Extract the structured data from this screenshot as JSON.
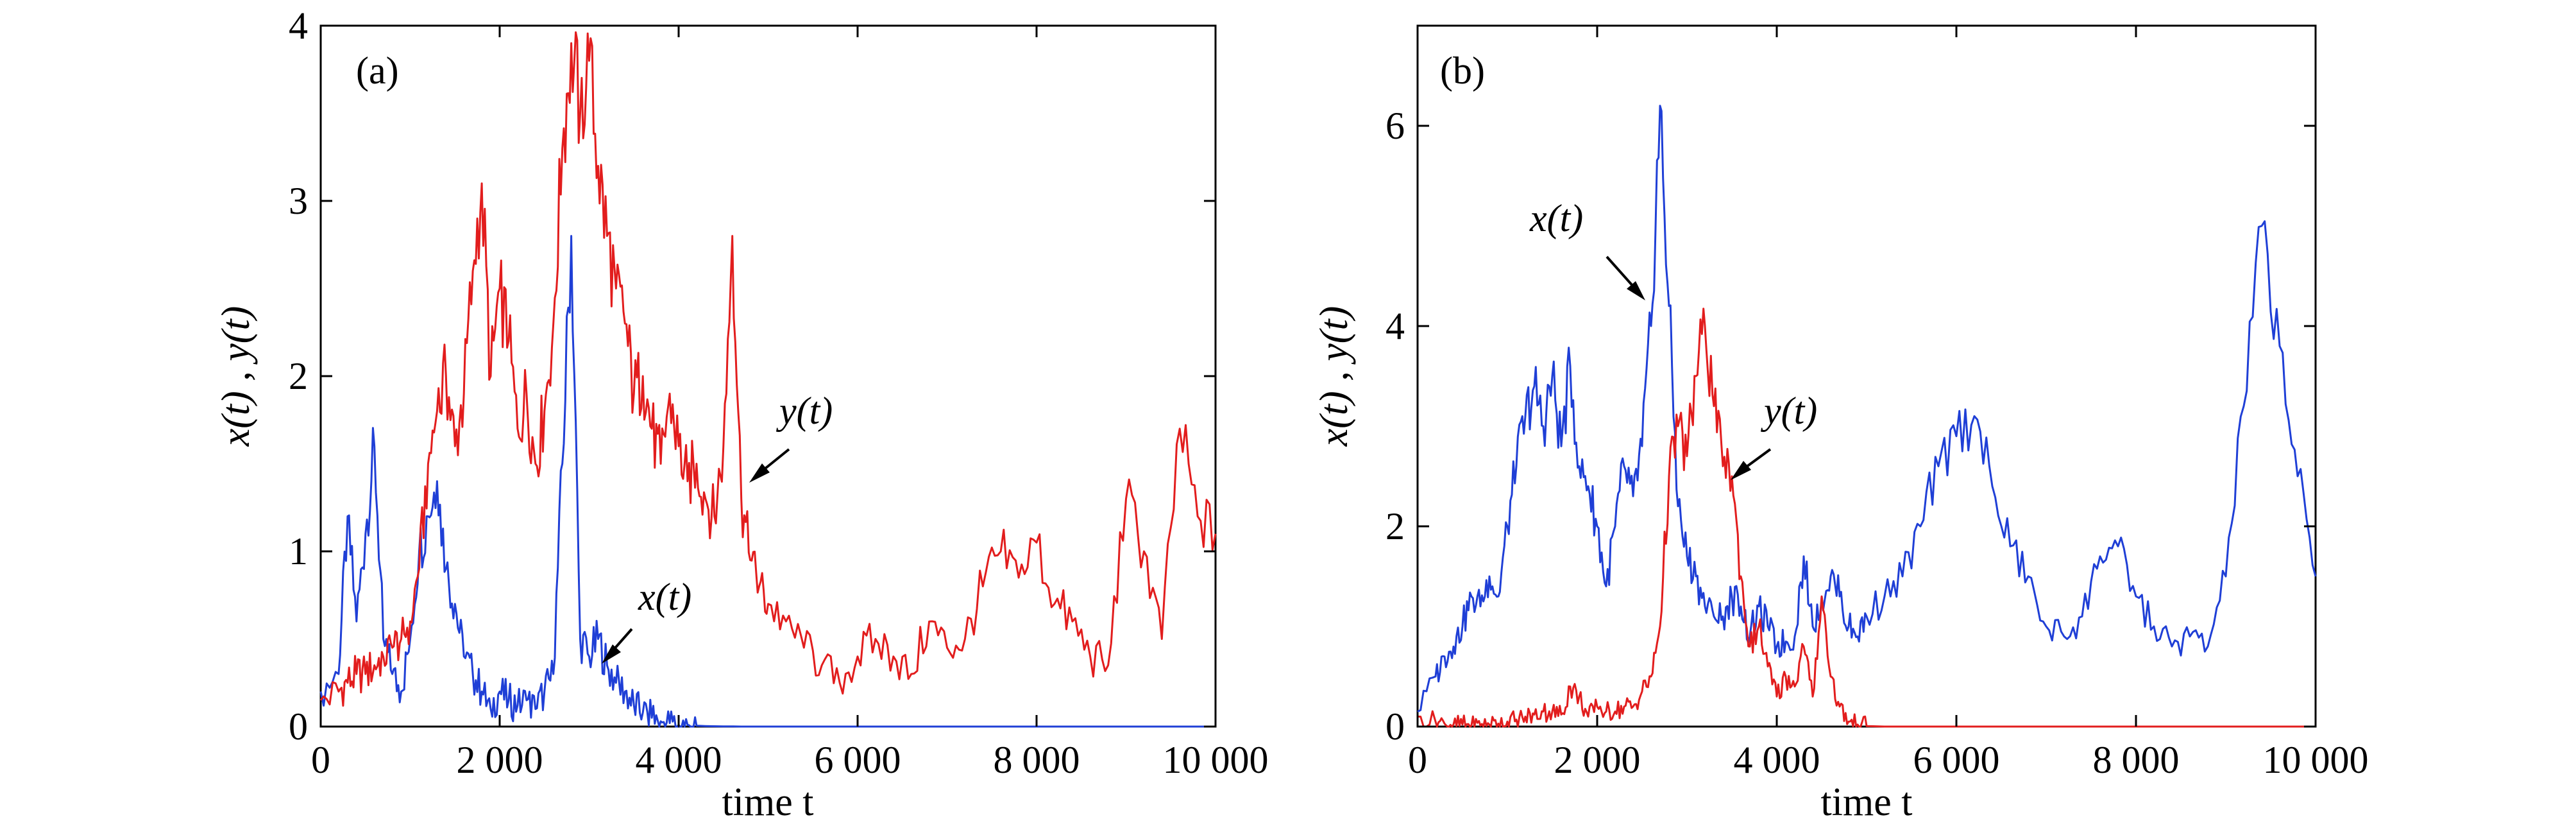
{
  "colors": {
    "x_series": "#1f3fd6",
    "y_series": "#e21d1d",
    "axis": "#000000",
    "background": "#ffffff"
  },
  "chart_data": [
    {
      "type": "line",
      "panel_label": "(a)",
      "xlabel": "time t",
      "ylabel": "x(t) , y(t)",
      "xlim": [
        0,
        10000
      ],
      "ylim": [
        0,
        4
      ],
      "x_ticks": [
        0,
        2000,
        4000,
        6000,
        8000,
        10000
      ],
      "x_tick_labels": [
        "0",
        "2 000",
        "4 000",
        "6 000",
        "8 000",
        "10 000"
      ],
      "y_ticks": [
        0,
        1,
        2,
        3,
        4
      ],
      "y_tick_labels": [
        "0",
        "1",
        "2",
        "3",
        "4"
      ],
      "grid": false,
      "x": [
        0,
        200,
        300,
        400,
        500,
        600,
        700,
        800,
        900,
        1000,
        1100,
        1200,
        1300,
        1400,
        1500,
        1600,
        1700,
        1800,
        1900,
        2000,
        2100,
        2200,
        2300,
        2400,
        2500,
        2600,
        2700,
        2800,
        2900,
        3000,
        3100,
        3200,
        3300,
        3400,
        3500,
        3600,
        3700,
        3800,
        3900,
        4000,
        4100,
        4200,
        4300,
        4400,
        4500,
        4600,
        4700,
        4800,
        4900,
        5000,
        5200,
        5400,
        5600,
        5800,
        6000,
        6200,
        6400,
        6600,
        6800,
        7000,
        7200,
        7400,
        7600,
        7800,
        8000,
        8200,
        8400,
        8600,
        8800,
        9000,
        9200,
        9400,
        9600,
        9800,
        10000
      ],
      "series": [
        {
          "name": "x(t)",
          "values": [
            0.2,
            0.3,
            1.2,
            0.6,
            1.1,
            1.6,
            0.5,
            0.3,
            0.2,
            0.5,
            1.0,
            1.2,
            1.4,
            0.9,
            0.7,
            0.4,
            0.3,
            0.2,
            0.1,
            0.2,
            0.15,
            0.12,
            0.15,
            0.1,
            0.2,
            0.3,
            1.5,
            2.8,
            0.5,
            0.4,
            0.5,
            0.35,
            0.25,
            0.2,
            0.12,
            0.08,
            0.05,
            0.03,
            0.02,
            0.01,
            0.01,
            0.005,
            0.003,
            0.002,
            0.001,
            0.001,
            0,
            0,
            0,
            0,
            0,
            0,
            0,
            0,
            0,
            0,
            0,
            0,
            0,
            0,
            0,
            0,
            0,
            0,
            0,
            0,
            0,
            0,
            0,
            0,
            0,
            0,
            0,
            0,
            0
          ],
          "label_text": "x(t)"
        },
        {
          "name": "y(t)",
          "values": [
            0.15,
            0.2,
            0.25,
            0.3,
            0.3,
            0.35,
            0.4,
            0.45,
            0.5,
            0.6,
            0.9,
            1.5,
            1.8,
            2.0,
            1.6,
            1.9,
            2.6,
            3.1,
            2.0,
            2.5,
            2.2,
            1.7,
            1.9,
            1.5,
            1.8,
            2.3,
            3.3,
            3.9,
            3.5,
            3.8,
            3.2,
            2.8,
            2.5,
            2.3,
            1.9,
            2.0,
            1.7,
            1.5,
            1.9,
            1.6,
            1.4,
            1.5,
            1.3,
            1.2,
            1.6,
            2.8,
            1.3,
            0.95,
            0.8,
            0.7,
            0.6,
            0.45,
            0.35,
            0.25,
            0.4,
            0.5,
            0.4,
            0.3,
            0.6,
            0.45,
            0.5,
            0.8,
            1.0,
            0.85,
            1.05,
            0.7,
            0.6,
            0.4,
            0.35,
            1.3,
            1.0,
            0.5,
            1.7,
            1.2,
            1.1
          ],
          "label_text": "y(t)"
        }
      ]
    },
    {
      "type": "line",
      "panel_label": "(b)",
      "xlabel": "time t",
      "ylabel": "x(t) , y(t)",
      "xlim": [
        0,
        10000
      ],
      "ylim": [
        0,
        7
      ],
      "x_ticks": [
        0,
        2000,
        4000,
        6000,
        8000,
        10000
      ],
      "x_tick_labels": [
        "0",
        "2 000",
        "4 000",
        "6 000",
        "8 000",
        "10 000"
      ],
      "y_ticks": [
        0,
        2,
        4,
        6
      ],
      "y_tick_labels": [
        "0",
        "2",
        "4",
        "6"
      ],
      "grid": false,
      "x": [
        0,
        200,
        300,
        400,
        500,
        600,
        700,
        800,
        900,
        1000,
        1100,
        1200,
        1300,
        1400,
        1500,
        1600,
        1700,
        1800,
        1900,
        2000,
        2100,
        2200,
        2300,
        2400,
        2500,
        2600,
        2700,
        2800,
        2900,
        3000,
        3100,
        3200,
        3300,
        3400,
        3500,
        3600,
        3700,
        3800,
        3900,
        4000,
        4100,
        4200,
        4300,
        4400,
        4500,
        4600,
        4700,
        4800,
        4900,
        5000,
        5200,
        5400,
        5600,
        5800,
        6000,
        6200,
        6400,
        6600,
        6800,
        7000,
        7200,
        7400,
        7600,
        7800,
        8000,
        8200,
        8400,
        8600,
        8800,
        9000,
        9200,
        9400,
        9600,
        9800,
        10000
      ],
      "series": [
        {
          "name": "x(t)",
          "values": [
            0.15,
            0.5,
            0.7,
            0.8,
            1.0,
            1.3,
            1.2,
            1.5,
            1.3,
            2.0,
            2.6,
            3.1,
            3.4,
            3.0,
            3.5,
            2.8,
            3.6,
            2.6,
            2.4,
            2.0,
            1.4,
            2.0,
            2.6,
            2.3,
            2.8,
            4.0,
            6.2,
            4.2,
            2.2,
            1.7,
            1.5,
            1.2,
            1.1,
            1.1,
            1.3,
            1.2,
            0.9,
            1.2,
            1.0,
            0.8,
            0.85,
            0.9,
            1.7,
            1.0,
            1.3,
            1.5,
            1.3,
            1.0,
            0.9,
            1.1,
            1.3,
            1.5,
            2.0,
            2.6,
            2.9,
            3.1,
            2.4,
            1.8,
            1.5,
            1.0,
            0.9,
            1.1,
            1.7,
            1.8,
            1.3,
            1.0,
            0.8,
            0.9,
            0.8,
            1.5,
            3.2,
            5.0,
            3.8,
            2.5,
            1.5
          ],
          "label_text": "x(t)"
        },
        {
          "name": "y(t)",
          "values": [
            0.1,
            0.05,
            0.03,
            0.02,
            0.02,
            0.01,
            0.01,
            0.02,
            0.03,
            0.05,
            0.07,
            0.1,
            0.12,
            0.15,
            0.15,
            0.12,
            0.4,
            0.3,
            0.1,
            0.2,
            0.15,
            0.15,
            0.2,
            0.2,
            0.35,
            0.5,
            1.0,
            2.5,
            3.0,
            2.7,
            3.5,
            4.0,
            3.2,
            2.6,
            2.5,
            1.5,
            0.8,
            1.0,
            0.6,
            0.3,
            0.5,
            0.4,
            0.8,
            0.3,
            1.3,
            0.5,
            0.2,
            0.05,
            0.02,
            0.005,
            0,
            0,
            0,
            0,
            0,
            0,
            0,
            0,
            0,
            0,
            0,
            0,
            0,
            0,
            0,
            0,
            0,
            0,
            0,
            0,
            0,
            0,
            0,
            0,
            0
          ],
          "label_text": "y(t)"
        }
      ]
    }
  ]
}
